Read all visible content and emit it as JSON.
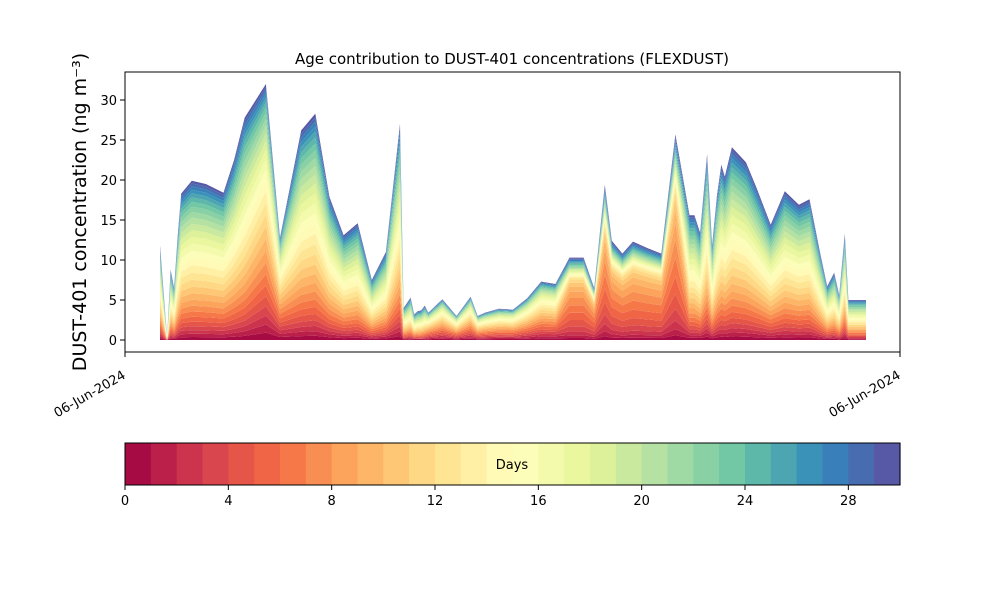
{
  "chart_data": {
    "type": "area",
    "title": "Age contribution to DUST-401 concentrations (FLEXDUST)",
    "ylabel": "DUST-401 concentration (ng m⁻³)",
    "xlabel": "",
    "x_tick_labels": [
      "06-Jun-2024",
      "06-Jun-2024"
    ],
    "ylim": [
      -1.5,
      33.5
    ],
    "yticks": [
      0,
      5,
      10,
      15,
      20,
      25,
      30
    ],
    "grid": false,
    "stacked": true,
    "x_index": [
      0.0,
      0.01,
      0.015,
      0.02,
      0.025,
      0.03,
      0.045,
      0.065,
      0.09,
      0.105,
      0.12,
      0.15,
      0.17,
      0.2,
      0.22,
      0.24,
      0.26,
      0.28,
      0.3,
      0.32,
      0.34,
      0.345,
      0.355,
      0.36,
      0.365,
      0.37,
      0.375,
      0.38,
      0.4,
      0.42,
      0.44,
      0.45,
      0.46,
      0.48,
      0.5,
      0.52,
      0.54,
      0.56,
      0.58,
      0.6,
      0.615,
      0.63,
      0.64,
      0.655,
      0.67,
      0.69,
      0.71,
      0.73,
      0.75,
      0.757,
      0.765,
      0.775,
      0.782,
      0.789,
      0.795,
      0.8,
      0.81,
      0.83,
      0.845,
      0.865,
      0.885,
      0.905,
      0.92,
      0.935,
      0.945,
      0.955,
      0.962,
      0.97,
      0.975,
      0.98,
      0.985,
      0.99,
      1.0
    ],
    "total": [
      11.8,
      0.3,
      8.8,
      6.5,
      13,
      18.3,
      19.9,
      19.5,
      18.4,
      22.5,
      27.8,
      32,
      12.8,
      26.2,
      28.3,
      17.9,
      13.1,
      14.6,
      7.5,
      11,
      27,
      4,
      5.3,
      3.2,
      3.6,
      3.7,
      4.3,
      3.4,
      5.1,
      3,
      5.4,
      3,
      3.4,
      3.9,
      3.8,
      5.2,
      7.3,
      7,
      10.3,
      10.3,
      6.5,
      19.4,
      12.4,
      10.8,
      12.3,
      11.5,
      10.8,
      25.7,
      15.6,
      15.6,
      13.4,
      23.2,
      11.8,
      18.1,
      21.9,
      20.4,
      24.1,
      22.2,
      19,
      14.4,
      18.6,
      16.9,
      17.6,
      10.9,
      6.7,
      8.4,
      5.6,
      13.3,
      5.0,
      5.0,
      5.0,
      5.0,
      5.0
    ],
    "colorbar": {
      "label": "Days",
      "min": 0,
      "max": 30,
      "ticks": [
        0,
        4,
        8,
        12,
        16,
        20,
        24,
        28
      ],
      "n_bins": 30
    }
  }
}
